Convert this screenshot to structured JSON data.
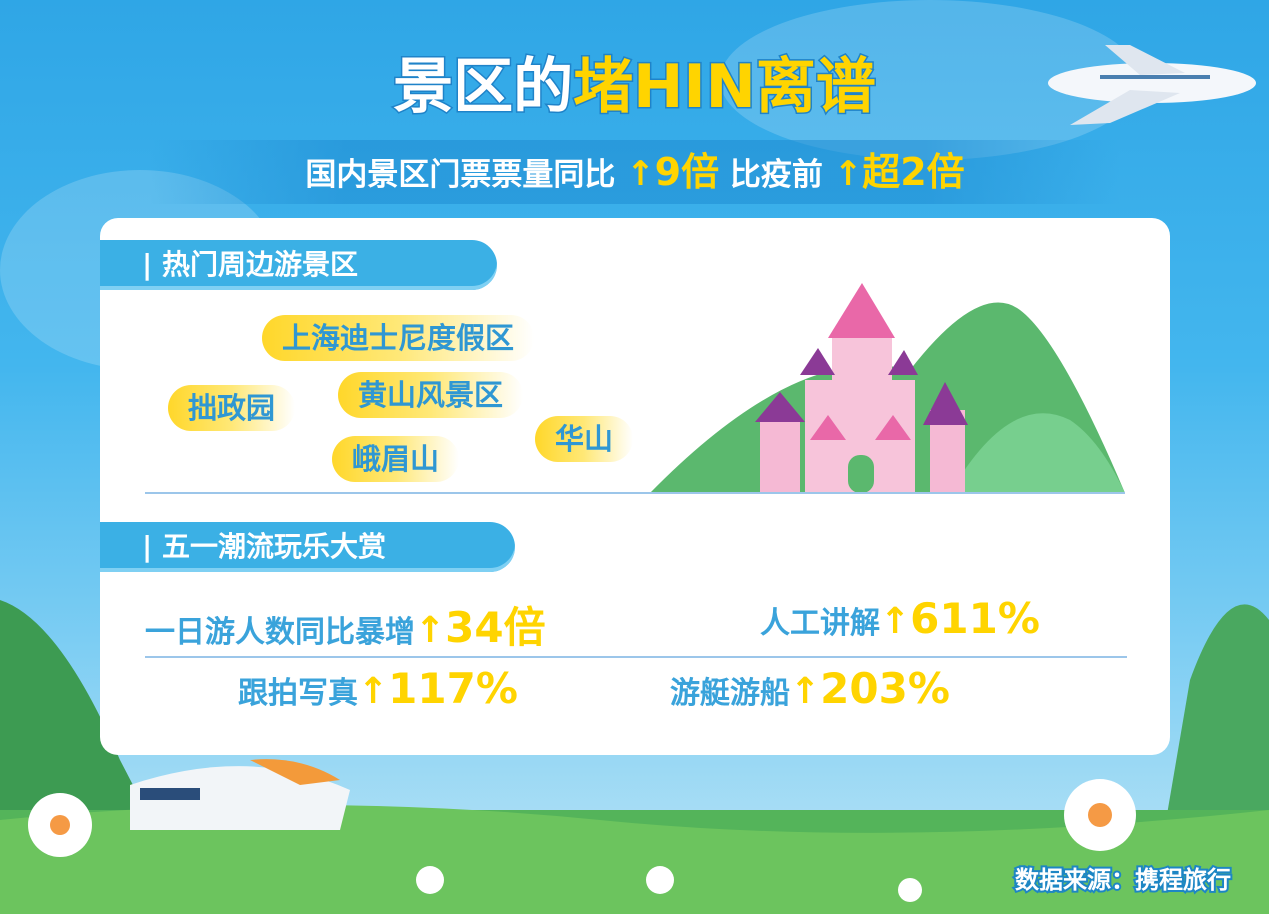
{
  "title": {
    "part1": "景区的",
    "part2": "堵HIN离谱"
  },
  "subtitle": {
    "text1": "国内景区门票票量同比",
    "value1": "9倍",
    "text2": "比疫前",
    "value2": "超2倍"
  },
  "section1": {
    "label": "| 热门周边游景区",
    "tags": [
      "上海迪士尼度假区",
      "拙政园",
      "黄山风景区",
      "华山",
      "峨眉山"
    ]
  },
  "section2": {
    "label": "| 五一潮流玩乐大赏",
    "stats": [
      {
        "label": "一日游人数同比暴增",
        "value": "34倍"
      },
      {
        "label": "人工讲解",
        "value": "611%"
      },
      {
        "label": "跟拍写真",
        "value": "117%"
      },
      {
        "label": "游艇游船",
        "value": "203%"
      }
    ]
  },
  "source": "数据来源：携程旅行",
  "colors": {
    "accent": "#ffd400",
    "blue": "#3bb0e5",
    "text_blue": "#2f97d3"
  },
  "icons": {
    "arrow": "up-arrow-icon"
  }
}
